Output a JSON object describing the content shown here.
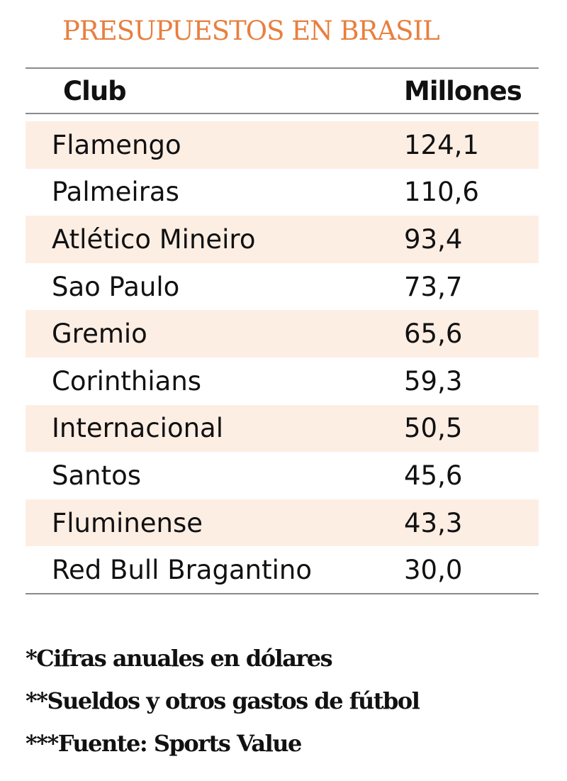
{
  "title": "PRESUPUESTOS EN BRASIL",
  "colors": {
    "title": "#e87f3f",
    "row_highlight": "#fdeee4",
    "rule": "#8a8a8a",
    "text": "#111111"
  },
  "chart_data": {
    "type": "table",
    "title": "PRESUPUESTOS EN BRASIL",
    "columns": [
      "Club",
      "Millones"
    ],
    "rows": [
      {
        "club": "Flamengo",
        "value": "124,1"
      },
      {
        "club": "Palmeiras",
        "value": "110,6"
      },
      {
        "club": "Atlético Mineiro",
        "value": "93,4"
      },
      {
        "club": "Sao Paulo",
        "value": "73,7"
      },
      {
        "club": "Gremio",
        "value": "65,6"
      },
      {
        "club": "Corinthians",
        "value": "59,3"
      },
      {
        "club": "Internacional",
        "value": "50,5"
      },
      {
        "club": "Santos",
        "value": "45,6"
      },
      {
        "club": "Fluminense",
        "value": "43,3"
      },
      {
        "club": "Red Bull Bragantino",
        "value": "30,0"
      }
    ]
  },
  "notes": [
    "*Cifras anuales en dólares",
    "**Sueldos y otros gastos de fútbol",
    "***Fuente: Sports Value"
  ]
}
